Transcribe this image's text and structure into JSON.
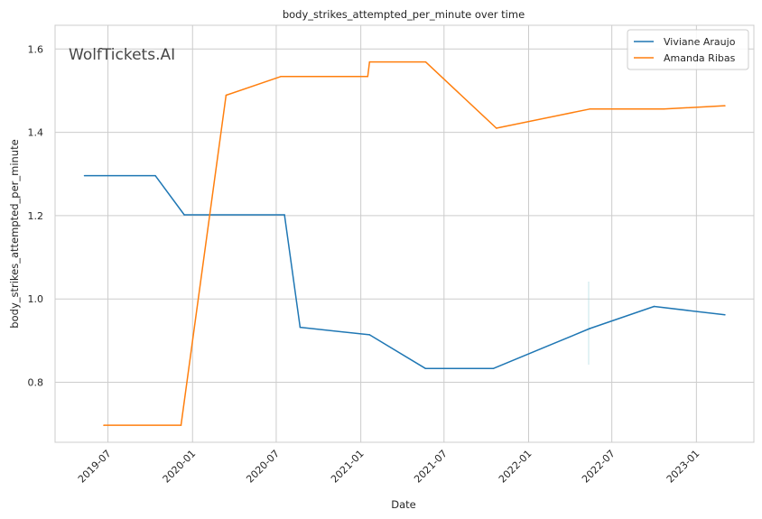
{
  "chart_data": {
    "type": "line",
    "title": "body_strikes_attempted_per_minute over time",
    "xlabel": "Date",
    "ylabel": "body_strikes_attempted_per_minute",
    "watermark": "WolfTickets.AI",
    "x_ticks": [
      "2019-07",
      "2020-01",
      "2020-07",
      "2021-01",
      "2021-07",
      "2022-01",
      "2022-07",
      "2023-01"
    ],
    "y_ticks": [
      "0.8",
      "1.0",
      "1.2",
      "1.4",
      "1.6"
    ],
    "xlim": [
      "2019-03-08",
      "2023-05-06"
    ],
    "ylim": [
      0.656,
      1.657
    ],
    "grid": true,
    "legend_position": "top-right",
    "colors": {
      "Viviane Araujo": "#1f77b4",
      "Amanda Ribas": "#ff7f0e",
      "grid": "#cccccc",
      "axes": "#cccccc",
      "watermark": "#bbbbbb"
    },
    "series": [
      {
        "name": "Viviane Araujo",
        "color": "#1f77b4",
        "points": [
          {
            "x": "2019-05-11",
            "y": 1.296
          },
          {
            "x": "2019-10-12",
            "y": 1.296
          },
          {
            "x": "2019-12-14",
            "y": 1.202
          },
          {
            "x": "2020-07-19",
            "y": 1.202
          },
          {
            "x": "2020-08-22",
            "y": 0.932
          },
          {
            "x": "2021-01-20",
            "y": 0.914
          },
          {
            "x": "2021-05-22",
            "y": 0.833
          },
          {
            "x": "2021-10-16",
            "y": 0.833
          },
          {
            "x": "2022-05-14",
            "y": 0.929
          },
          {
            "x": "2022-10-01",
            "y": 0.982
          },
          {
            "x": "2023-03-04",
            "y": 0.962
          }
        ]
      },
      {
        "name": "Amanda Ribas",
        "color": "#ff7f0e",
        "points": [
          {
            "x": "2019-06-22",
            "y": 0.697
          },
          {
            "x": "2019-12-07",
            "y": 0.697
          },
          {
            "x": "2020-03-14",
            "y": 1.489
          },
          {
            "x": "2020-07-11",
            "y": 1.534
          },
          {
            "x": "2021-01-16",
            "y": 1.534
          },
          {
            "x": "2021-01-20",
            "y": 1.569
          },
          {
            "x": "2021-05-22",
            "y": 1.569
          },
          {
            "x": "2021-10-23",
            "y": 1.41
          },
          {
            "x": "2022-05-14",
            "y": 1.456
          },
          {
            "x": "2022-10-22",
            "y": 1.456
          },
          {
            "x": "2023-03-04",
            "y": 1.464
          }
        ]
      }
    ]
  }
}
